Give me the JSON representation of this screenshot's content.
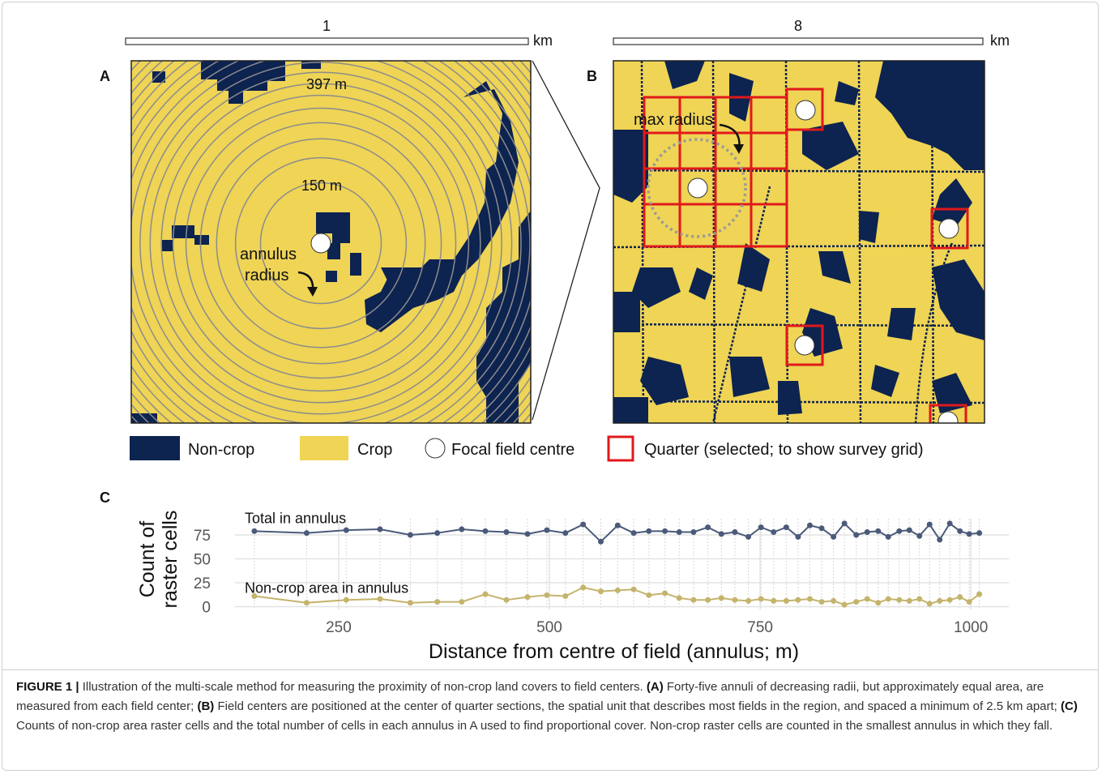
{
  "scale_a": {
    "value": "1",
    "unit": "km"
  },
  "scale_b": {
    "value": "8",
    "unit": "km"
  },
  "panel_a": {
    "label": "A",
    "ring_label_outer": "397 m",
    "ring_label_inner": "150 m",
    "radius_label": [
      "annulus",
      "radius"
    ]
  },
  "panel_b": {
    "label": "B",
    "radius_label": "max radius"
  },
  "legend": {
    "non_crop": "Non-crop",
    "crop": "Crop",
    "centre": "Focal field centre",
    "quarter": "Quarter (selected; to show survey grid)"
  },
  "chart_data": {
    "type": "line",
    "label": "C",
    "x_label": "Distance from centre of field (annulus; m)",
    "y_label": [
      "Count of",
      "raster cells"
    ],
    "x": [
      150,
      212,
      259,
      299,
      335,
      367,
      396,
      424,
      449,
      474,
      497,
      519,
      540,
      561,
      581,
      600,
      618,
      637,
      654,
      671,
      688,
      704,
      720,
      736,
      751,
      766,
      781,
      795,
      809,
      823,
      837,
      850,
      864,
      877,
      890,
      902,
      915,
      927,
      939,
      951,
      963,
      975,
      987,
      998,
      1010
    ],
    "series": [
      {
        "name": "Total in annulus",
        "color": "#4b5a79",
        "values": [
          79,
          77,
          80,
          81,
          75,
          77,
          81,
          79,
          78,
          76,
          80,
          77,
          86,
          68,
          85,
          77,
          79,
          79,
          78,
          78,
          83,
          76,
          78,
          73,
          83,
          78,
          83,
          73,
          85,
          82,
          73,
          87,
          75,
          78,
          79,
          73,
          79,
          80,
          74,
          86,
          70,
          87,
          79,
          76,
          77
        ]
      },
      {
        "name": "Non-crop area in annulus",
        "color": "#c4b46c",
        "values": [
          11,
          4,
          7,
          8,
          4,
          5,
          5,
          13,
          7,
          10,
          12,
          11,
          20,
          16,
          17,
          18,
          12,
          14,
          9,
          7,
          7,
          9,
          7,
          6,
          8,
          6,
          6,
          7,
          8,
          5,
          6,
          2,
          5,
          8,
          4,
          8,
          7,
          6,
          8,
          3,
          6,
          7,
          10,
          5,
          13
        ]
      }
    ],
    "xlim": [
      127,
      1045
    ],
    "ylim": [
      -3,
      92
    ],
    "xticks": [
      250,
      500,
      750,
      1000
    ],
    "yticks": [
      0,
      25,
      50,
      75
    ],
    "grid": true
  },
  "caption": {
    "parts": [
      {
        "text": "FIGURE 1 | ",
        "bold": true
      },
      {
        "text": "Illustration of the multi-scale method for measuring the proximity of non-crop land covers to field centers. ",
        "bold": false
      },
      {
        "text": "(A)",
        "bold": true
      },
      {
        "text": " Forty-five annuli of decreasing radii, but approximately equal area, are measured from each field center; ",
        "bold": false
      },
      {
        "text": "(B)",
        "bold": true
      },
      {
        "text": " Field centers are positioned at the center of quarter sections, the spatial unit that describes most fields in the region, and spaced a minimum of 2.5 km apart; ",
        "bold": false
      },
      {
        "text": "(C)",
        "bold": true
      },
      {
        "text": " Counts of non-crop area raster cells and the total number of cells in each annulus in A used to find proportional cover. Non-crop raster cells are counted in the smallest annulus in which they fall.",
        "bold": false
      }
    ]
  }
}
